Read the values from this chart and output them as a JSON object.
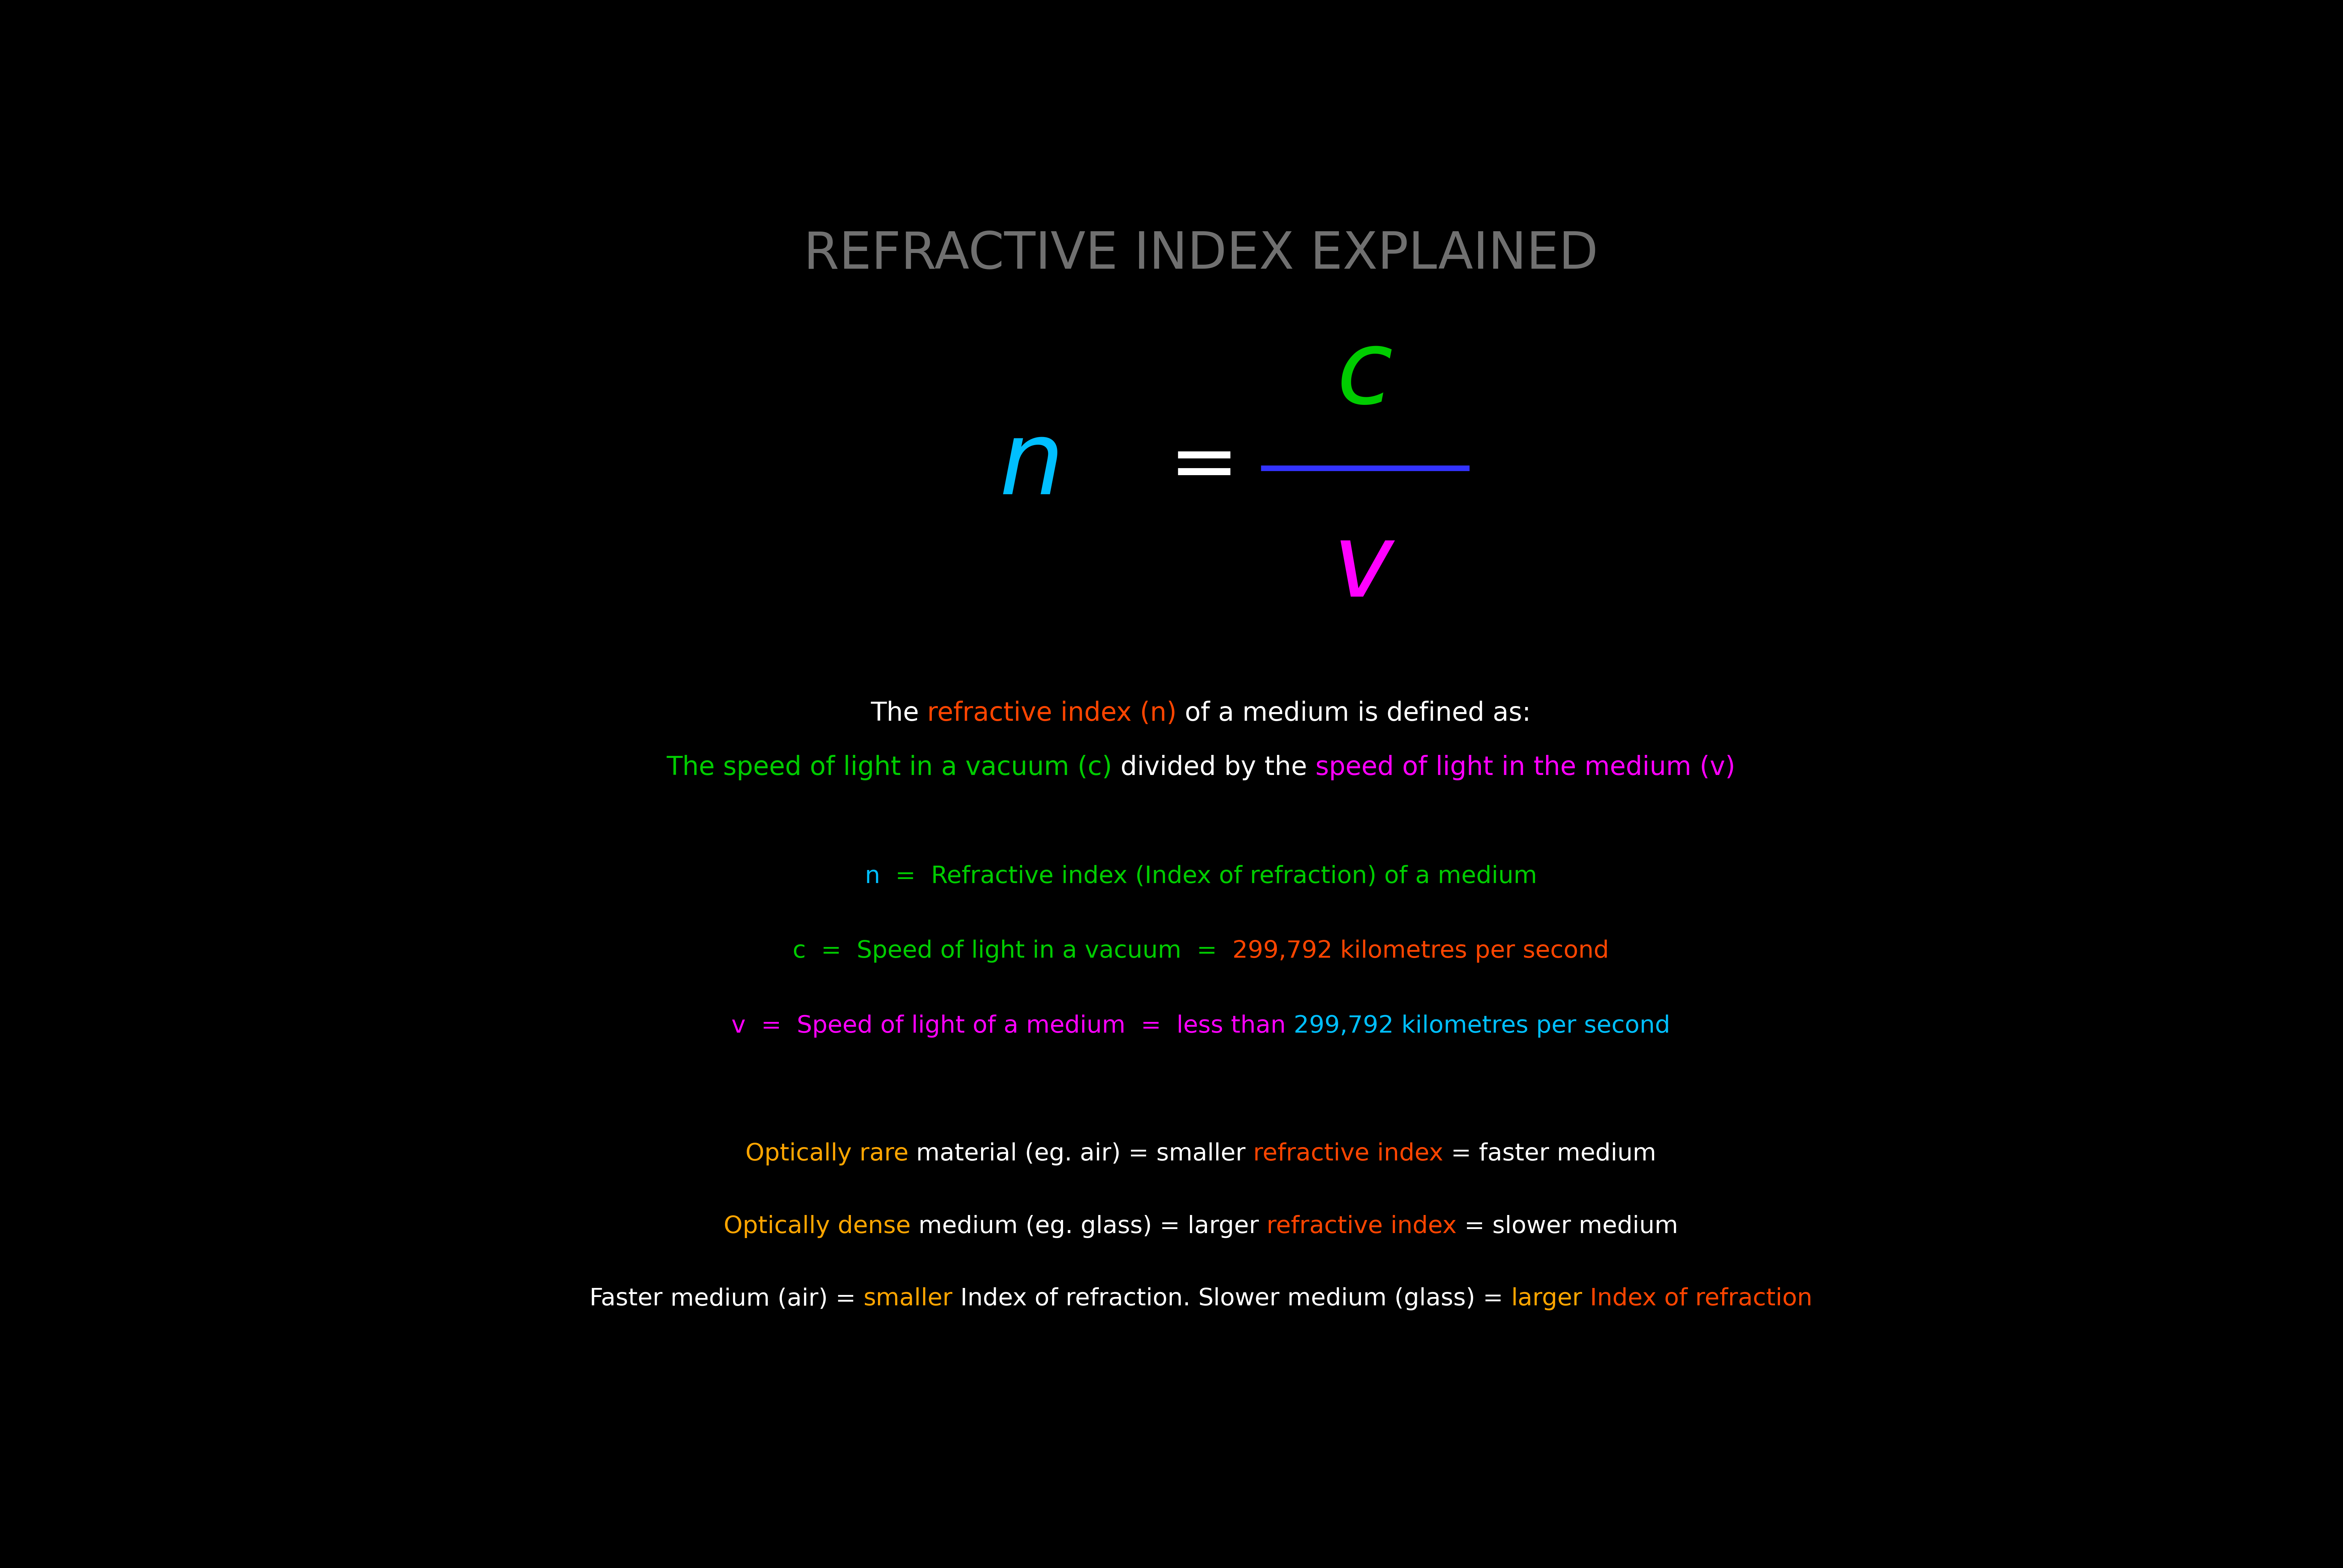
{
  "background_color": "#000000",
  "title": "REFRACTIVE INDEX EXPLAINED",
  "title_color": "#707070",
  "title_fontsize": 110,
  "formula_n_color": "#00BFFF",
  "formula_c_color": "#00CC00",
  "formula_v_color": "#FF00FF",
  "formula_line_color": "#3333FF",
  "desc_line1_parts": [
    {
      "text": "The ",
      "color": "#FFFFFF"
    },
    {
      "text": "refractive index (n)",
      "color": "#FF4500"
    },
    {
      "text": " of a medium is defined as:",
      "color": "#FFFFFF"
    }
  ],
  "desc_line2_parts": [
    {
      "text": "The speed of light in a vacuum (c)",
      "color": "#00CC00"
    },
    {
      "text": " divided by the ",
      "color": "#FFFFFF"
    },
    {
      "text": "speed of light in the medium (v)",
      "color": "#FF00FF"
    }
  ],
  "bullet_lines": [
    {
      "parts": [
        {
          "text": "n",
          "color": "#00BFFF"
        },
        {
          "text": "  =  Refractive index (Index of refraction) of a medium",
          "color": "#00CC00"
        }
      ]
    },
    {
      "parts": [
        {
          "text": "c",
          "color": "#00CC00"
        },
        {
          "text": "  =  Speed of light in a vacuum  =  ",
          "color": "#00CC00"
        },
        {
          "text": "299,792 kilometres per second",
          "color": "#FF4500"
        }
      ]
    },
    {
      "parts": [
        {
          "text": "v",
          "color": "#FF00FF"
        },
        {
          "text": "  =  Speed of light of a medium  =  less than ",
          "color": "#FF00FF"
        },
        {
          "text": "299,792 kilometres per second",
          "color": "#00BFFF"
        }
      ]
    }
  ],
  "bottom_lines": [
    {
      "parts": [
        {
          "text": "Optically rare",
          "color": "#FFA500"
        },
        {
          "text": " material (eg. air) = smaller ",
          "color": "#FFFFFF"
        },
        {
          "text": "refractive index",
          "color": "#FF4500"
        },
        {
          "text": " = faster medium",
          "color": "#FFFFFF"
        }
      ]
    },
    {
      "parts": [
        {
          "text": "Optically dense",
          "color": "#FFA500"
        },
        {
          "text": " medium (eg. glass) = larger ",
          "color": "#FFFFFF"
        },
        {
          "text": "refractive index",
          "color": "#FF4500"
        },
        {
          "text": " = slower medium",
          "color": "#FFFFFF"
        }
      ]
    },
    {
      "parts": [
        {
          "text": "Faster",
          "color": "#FFFFFF"
        },
        {
          "text": " medium (air) = ",
          "color": "#FFFFFF"
        },
        {
          "text": "smaller",
          "color": "#FFA500"
        },
        {
          "text": " Index of refraction. ",
          "color": "#FFFFFF"
        },
        {
          "text": "Slower",
          "color": "#FFFFFF"
        },
        {
          "text": " medium (glass) = ",
          "color": "#FFFFFF"
        },
        {
          "text": "larger",
          "color": "#FFA500"
        },
        {
          "text": " Index of refraction",
          "color": "#FF4500"
        }
      ]
    }
  ]
}
